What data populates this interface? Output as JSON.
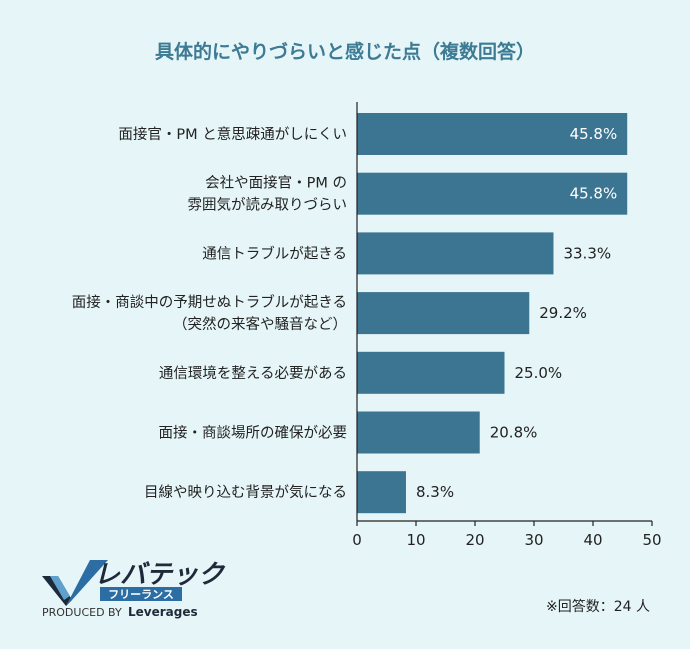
{
  "chart_data": {
    "type": "bar",
    "orientation": "horizontal",
    "title": "具体的にやりづらいと感じた点（複数回答）",
    "categories": [
      [
        "面接官・PM と意思疎通がしにくい"
      ],
      [
        "会社や面接官・PM の",
        "雰囲気が読み取りづらい"
      ],
      [
        "通信トラブルが起きる"
      ],
      [
        "面接・商談中の予期せぬトラブルが起きる",
        "（突然の来客や騒音など）"
      ],
      [
        "通信環境を整える必要がある"
      ],
      [
        "面接・商談場所の確保が必要"
      ],
      [
        "目線や映り込む背景が気になる"
      ]
    ],
    "values": [
      45.8,
      45.8,
      33.3,
      29.2,
      25.0,
      20.8,
      8.3
    ],
    "value_labels": [
      "45.8%",
      "45.8%",
      "33.3%",
      "29.2%",
      "25.0%",
      "20.8%",
      "8.3%"
    ],
    "xlim": [
      0,
      50
    ],
    "xticks": [
      0,
      10,
      20,
      30,
      40,
      50
    ],
    "xtick_labels": [
      "0",
      "10",
      "20",
      "30",
      "40",
      "50"
    ],
    "bar_color": "#3b7592",
    "grid": false,
    "legend": "none"
  },
  "note": "※回答数：24 人",
  "logo": {
    "name": "レバテック",
    "sub": "フリーランス",
    "produced_by": "PRODUCED BY",
    "brand": "Leverages",
    "accent_color": "#2c6ea3"
  }
}
